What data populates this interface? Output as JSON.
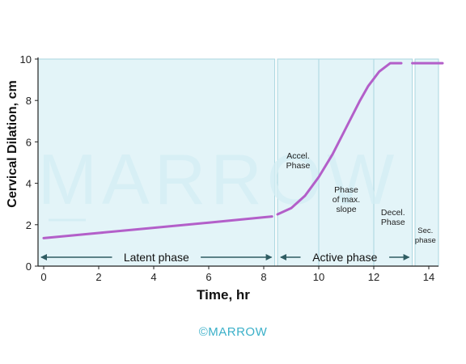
{
  "chart_data": {
    "type": "line",
    "xlabel": "Time, hr",
    "ylabel": "Cervical Dilation, cm",
    "xlim": [
      0,
      14.5
    ],
    "ylim": [
      0,
      10
    ],
    "x_ticks": [
      "0",
      "2",
      "4",
      "6",
      "8",
      "10",
      "12",
      "14"
    ],
    "y_ticks": [
      "0",
      "2",
      "4",
      "6",
      "8",
      "10"
    ],
    "series": [
      {
        "x": [
          0,
          2,
          4,
          6,
          8.3
        ],
        "y": [
          1.35,
          1.6,
          1.85,
          2.1,
          2.4
        ]
      },
      {
        "x": [
          8.5,
          9,
          9.5,
          10,
          10.5,
          11,
          11.5,
          11.8,
          12.2,
          12.6,
          13.0
        ],
        "y": [
          2.5,
          2.8,
          3.4,
          4.3,
          5.4,
          6.7,
          8.0,
          8.7,
          9.4,
          9.8,
          9.8
        ]
      },
      {
        "x": [
          13.4,
          14.5
        ],
        "y": [
          9.8,
          9.8
        ]
      }
    ],
    "phases": [
      {
        "name": "Latent phase",
        "start": 0,
        "end": 8.4
      },
      {
        "name": "Active phase",
        "start": 8.5,
        "end": 13.4
      }
    ],
    "subphases": [
      {
        "name": "Accel. Phase",
        "start": 8.5,
        "end": 10
      },
      {
        "name": "Phase of max. slope",
        "start": 10,
        "end": 12
      },
      {
        "name": "Decel. Phase",
        "start": 12,
        "end": 13.4
      },
      {
        "name": "Sec. phase",
        "start": 13.4,
        "end": 14.5
      }
    ],
    "colors": {
      "curve": "#b35fc9",
      "band": "#e3f4f8",
      "band_edge": "#a9d6df",
      "arrow": "#2f5d63",
      "watermark": "#d4eef4",
      "logo": "#3bb0c9"
    }
  },
  "watermark": "MARROW",
  "footer_logo": "©MARROW"
}
